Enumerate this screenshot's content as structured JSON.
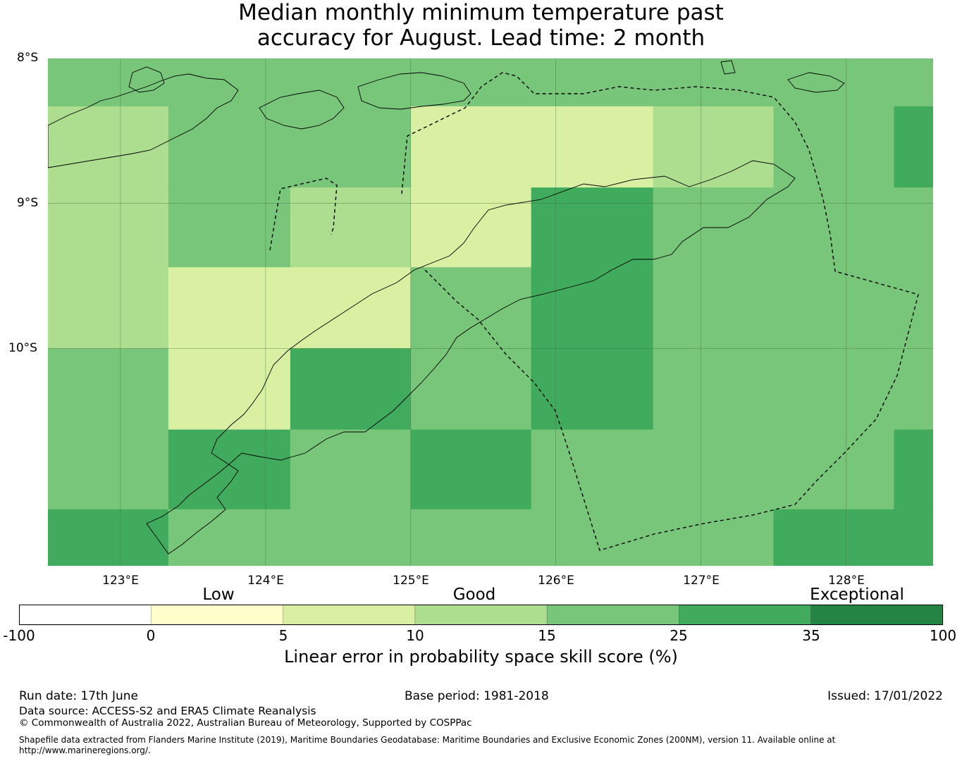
{
  "title": {
    "line1": "Median monthly minimum temperature past",
    "line2": "accuracy for August. Lead time: 2 month"
  },
  "map": {
    "lon_range": [
      122.5,
      128.6
    ],
    "lat_range": [
      -11.5,
      -8.0
    ],
    "lat_ticks": [
      {
        "value": -8,
        "label": "8°S"
      },
      {
        "value": -9,
        "label": "9°S"
      },
      {
        "value": -10,
        "label": "10°S"
      }
    ],
    "lon_ticks": [
      {
        "value": 123,
        "label": "123°E"
      },
      {
        "value": 124,
        "label": "124°E"
      },
      {
        "value": 125,
        "label": "125°E"
      },
      {
        "value": 126,
        "label": "126°E"
      },
      {
        "value": 127,
        "label": "127°E"
      },
      {
        "value": 128,
        "label": "128°E"
      }
    ],
    "grid_lon_edges": [
      122.5,
      123.33,
      124.17,
      125.0,
      125.83,
      126.67,
      127.5,
      128.33,
      128.6
    ],
    "grid_lat_edges": [
      -8.0,
      -8.33,
      -8.89,
      -9.44,
      -10.0,
      -10.56,
      -11.11,
      -11.5
    ],
    "grid_values": [
      [
        20,
        20,
        20,
        20,
        20,
        20,
        20,
        20
      ],
      [
        12,
        20,
        20,
        7,
        7,
        12,
        20,
        30
      ],
      [
        12,
        20,
        12,
        7,
        30,
        20,
        20,
        20
      ],
      [
        12,
        7,
        7,
        20,
        30,
        20,
        20,
        20
      ],
      [
        20,
        7,
        30,
        20,
        30,
        20,
        20,
        20
      ],
      [
        20,
        30,
        20,
        30,
        20,
        20,
        20,
        30
      ],
      [
        30,
        20,
        20,
        20,
        20,
        20,
        30,
        30
      ]
    ]
  },
  "colorbar": {
    "bounds": [
      -100,
      0,
      5,
      10,
      15,
      25,
      35,
      100
    ],
    "tick_labels": [
      "-100",
      "0",
      "5",
      "10",
      "15",
      "25",
      "35",
      "100"
    ],
    "colors": [
      "#ffffff",
      "#ffffcc",
      "#d9f0a3",
      "#addd8e",
      "#78c679",
      "#41ab5d",
      "#238443"
    ],
    "categories": [
      {
        "label": "Low"
      },
      {
        "label": "Good"
      },
      {
        "label": "Exceptional"
      }
    ],
    "label": "Linear error in probability space skill score (%)"
  },
  "footer": {
    "run_date": "Run date: 17th June",
    "base_period": "Base period: 1981-2018",
    "issued": "Issued: 17/01/2022",
    "data_source": "Data source: ACCESS-S2 and ERA5 Climate Reanalysis",
    "copyright": "© Commonwealth of Australia 2022, Australian Bureau of Meteorology, Supported by COSPPac",
    "shapefile": "Shapefile data extracted from Flanders Marine Institute (2019), Maritime Boundaries Geodatabase: Maritime Boundaries and Exclusive Economic Zones (200NM), version 11. Available online at http://www.marineregions.org/."
  }
}
